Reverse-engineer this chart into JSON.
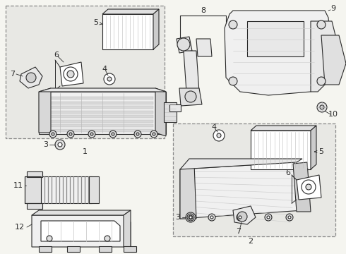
{
  "bg_color": "#f5f5f0",
  "line_color": "#2a2a2a",
  "box_bg": "#e8e8e4",
  "part_fill": "#ffffff",
  "part_stroke": "#2a2a2a",
  "hatch_color": "#aaaaaa",
  "font_size": 8,
  "font_size_large": 9
}
